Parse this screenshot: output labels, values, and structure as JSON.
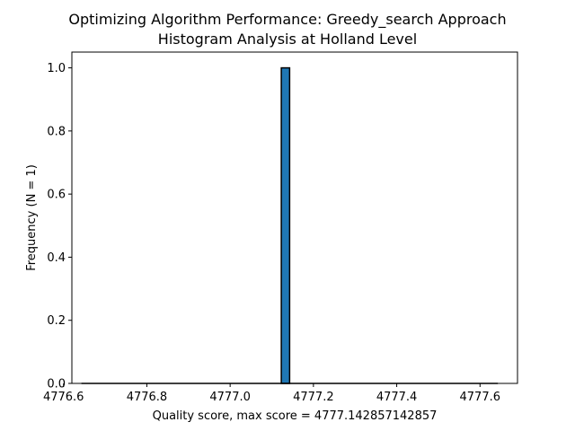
{
  "chart_data": {
    "type": "bar",
    "title_lines": [
      "Optimizing Algorithm Performance: Greedy_search Approach",
      "Histogram Analysis at Holland Level"
    ],
    "xlabel": "Quality score, max score = 4777.142857142857",
    "ylabel": "Frequency (N = 1)",
    "xlim": [
      4776.62,
      4777.69
    ],
    "ylim": [
      0,
      1.05
    ],
    "x_ticks": [
      4776.6,
      4776.8,
      4777.0,
      4777.2,
      4777.4,
      4777.6
    ],
    "x_tick_labels": [
      "4776.6",
      "4776.8",
      "4777.0",
      "4777.2",
      "4777.4",
      "4777.6"
    ],
    "y_ticks": [
      0.0,
      0.2,
      0.4,
      0.6,
      0.8,
      1.0
    ],
    "y_tick_labels": [
      "0.0",
      "0.2",
      "0.4",
      "0.6",
      "0.8",
      "1.0"
    ],
    "bin_range": [
      4776.642857142857,
      4777.642857142857
    ],
    "bins": 50,
    "bars": [
      {
        "x_start": 4777.122857142857,
        "x_end": 4777.142857142857,
        "value": 1
      }
    ],
    "bar_color": "#1f77b4",
    "bar_edge_color": "#000000",
    "grid": false,
    "legend": "none"
  }
}
